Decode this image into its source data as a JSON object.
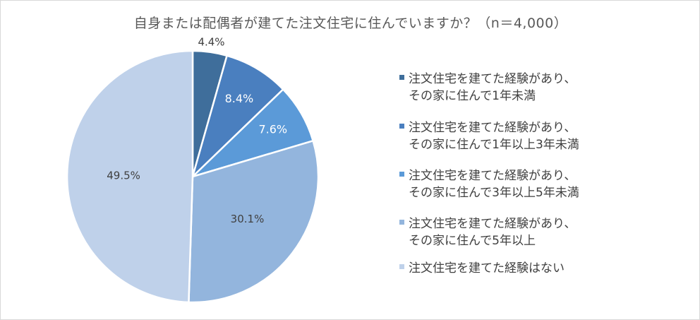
{
  "title": "自身または配偶者が建てた注文住宅に住んでいますか？（n＝4,000）",
  "chart_data": {
    "type": "pie",
    "title": "自身または配偶者が建てた注文住宅に住んでいますか？（n＝4,000）",
    "legend_position": "right",
    "slices": [
      {
        "label": "注文住宅を建てた経験があり、\nその家に住んで1年未満",
        "value": 4.4,
        "display": "4.4%",
        "color": "#3f6e9b"
      },
      {
        "label": "注文住宅を建てた経験があり、\nその家に住んで1年以上3年未満",
        "value": 8.4,
        "display": "8.4%",
        "color": "#4a7fbf"
      },
      {
        "label": "注文住宅を建てた経験があり、\nその家に住んで3年以上5年未満",
        "value": 7.6,
        "display": "7.6%",
        "color": "#5b9ad8"
      },
      {
        "label": "注文住宅を建てた経験があり、\nその家に住んで5年以上",
        "value": 30.1,
        "display": "30.1%",
        "color": "#93b5dd"
      },
      {
        "label": "注文住宅を建てた経験はない",
        "value": 49.5,
        "display": "49.5%",
        "color": "#bfd1ea"
      }
    ]
  }
}
